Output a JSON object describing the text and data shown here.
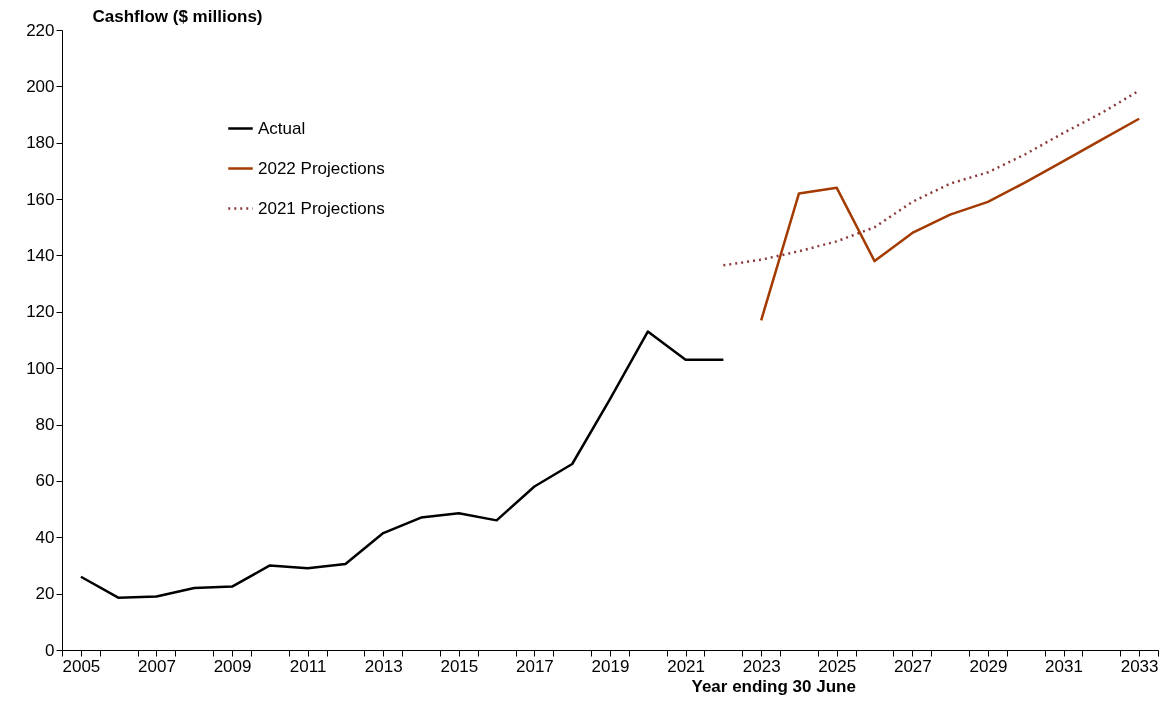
{
  "chart_data": {
    "type": "line",
    "ylabel": "Cashflow ($ millions)",
    "xlabel": "Year ending 30 June",
    "xlim": [
      2004.5,
      2033.5
    ],
    "xticks": [
      {
        "value": 2004.5,
        "label": null
      },
      2005,
      {
        "value": 2005.5,
        "label": null
      },
      {
        "value": 2006.5,
        "label": null
      },
      2007,
      {
        "value": 2007.5,
        "label": null
      },
      {
        "value": 2008.5,
        "label": null
      },
      2009,
      {
        "value": 2009.5,
        "label": null
      },
      {
        "value": 2010.5,
        "label": null
      },
      2011,
      {
        "value": 2011.5,
        "label": null
      },
      {
        "value": 2012.5,
        "label": null
      },
      2013,
      {
        "value": 2013.5,
        "label": null
      },
      {
        "value": 2014.5,
        "label": null
      },
      2015,
      {
        "value": 2015.5,
        "label": null
      },
      {
        "value": 2016.5,
        "label": null
      },
      2017,
      {
        "value": 2017.5,
        "label": null
      },
      {
        "value": 2018.5,
        "label": null
      },
      2019,
      {
        "value": 2019.5,
        "label": null
      },
      {
        "value": 2020.5,
        "label": null
      },
      2021,
      {
        "value": 2021.5,
        "label": null
      },
      {
        "value": 2022.5,
        "label": null
      },
      2023,
      {
        "value": 2023.5,
        "label": null
      },
      {
        "value": 2024.5,
        "label": null
      },
      2025,
      {
        "value": 2025.5,
        "label": null
      },
      {
        "value": 2026.5,
        "label": null
      },
      2027,
      {
        "value": 2027.5,
        "label": null
      },
      {
        "value": 2028.5,
        "label": null
      },
      2029,
      {
        "value": 2029.5,
        "label": null
      },
      {
        "value": 2030.5,
        "label": null
      },
      2031,
      {
        "value": 2031.5,
        "label": null
      },
      {
        "value": 2032.5,
        "label": null
      },
      2033,
      {
        "value": 2033.5,
        "label": null
      }
    ],
    "ylim": [
      0,
      220
    ],
    "yticks": [
      0,
      20,
      40,
      60,
      80,
      100,
      120,
      140,
      160,
      180,
      200,
      220
    ],
    "grid": false,
    "legend": "top left",
    "series": [
      {
        "name": "Actual",
        "color": "#000000",
        "line_style": "solid",
        "x": [
          2005,
          2006,
          2007,
          2008,
          2009,
          2010,
          2011,
          2012,
          2013,
          2014,
          2015,
          2016,
          2017,
          2018,
          2019,
          2020,
          2021,
          2022
        ],
        "values": [
          26,
          18.5,
          19,
          22,
          22.5,
          30,
          29,
          30.5,
          41.5,
          47,
          48.5,
          46,
          58,
          66,
          89,
          113,
          103,
          103
        ]
      },
      {
        "name": "2022 Projections",
        "color": "#a33a00",
        "line_style": "solid",
        "x": [
          2023,
          2024,
          2025,
          2026,
          2027,
          2028,
          2029,
          2030,
          2031,
          2032,
          2033
        ],
        "values": [
          117,
          162,
          164,
          138,
          148,
          154.5,
          159,
          166,
          173.5,
          181,
          188.5
        ]
      },
      {
        "name": "2021 Projections",
        "color": "#8b3a3a",
        "line_style": "dotted",
        "x": [
          2022,
          2023,
          2024,
          2025,
          2026,
          2027,
          2028,
          2029,
          2030,
          2031,
          2032,
          2033
        ],
        "values": [
          136.5,
          138.5,
          141.5,
          145,
          150,
          159,
          165.5,
          169.5,
          176,
          183.5,
          190.5,
          198.5
        ]
      }
    ]
  }
}
